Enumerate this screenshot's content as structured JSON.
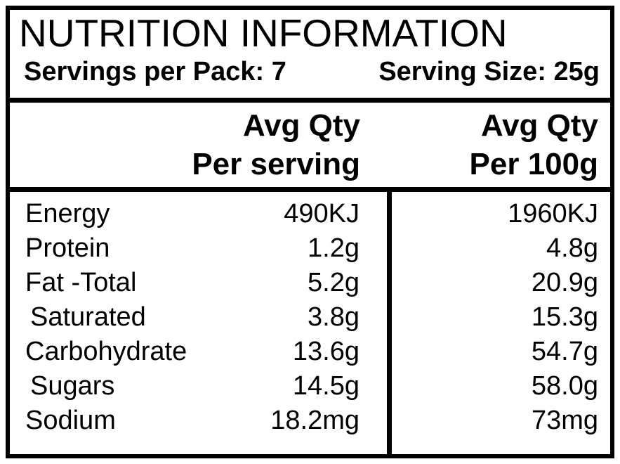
{
  "label": {
    "title": "NUTRITION INFORMATION",
    "servings_per_pack": "Servings per Pack: 7",
    "serving_size": "Serving Size: 25g",
    "columns": {
      "per_serving": {
        "line1": "Avg Qty",
        "line2": "Per serving"
      },
      "per_100g": {
        "line1": "Avg Qty",
        "line2": "Per 100g"
      }
    },
    "rows": [
      {
        "name": "Energy",
        "per_serving": "490KJ",
        "per_100g": "1960KJ"
      },
      {
        "name": "Protein",
        "per_serving": "1.2g",
        "per_100g": "4.8g"
      },
      {
        "name": "Fat -Total",
        "per_serving": "5.2g",
        "per_100g": "20.9g"
      },
      {
        "name": "Saturated",
        "per_serving": "3.8g",
        "per_100g": "15.3g"
      },
      {
        "name": "Carbohydrate",
        "per_serving": "13.6g",
        "per_100g": "54.7g"
      },
      {
        "name": "Sugars",
        "per_serving": "14.5g",
        "per_100g": "58.0g"
      },
      {
        "name": "Sodium",
        "per_serving": "18.2mg",
        "per_100g": "73mg"
      }
    ],
    "colors": {
      "text": "#000000",
      "background": "#ffffff",
      "border": "#000000"
    }
  }
}
